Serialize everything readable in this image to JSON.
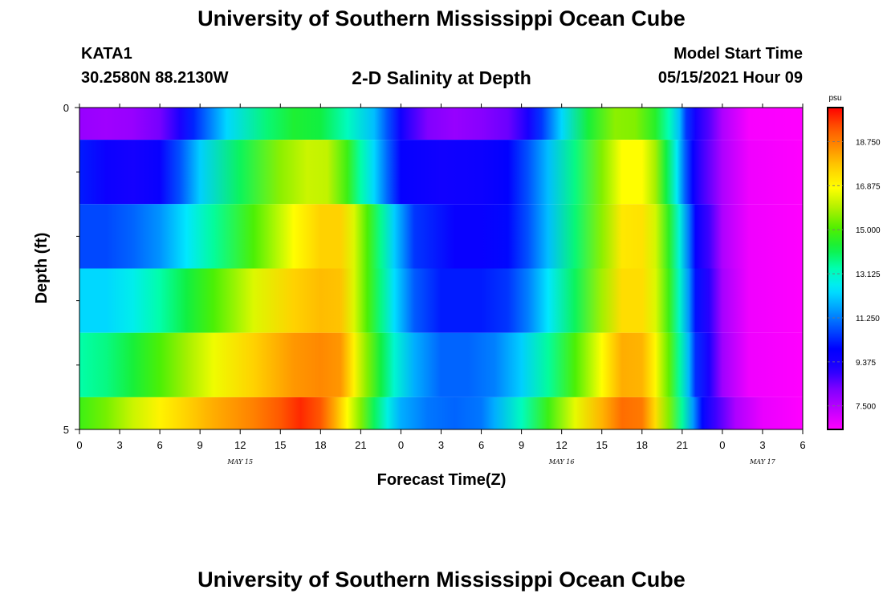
{
  "header": {
    "title": "University of Southern Mississippi Ocean Cube",
    "station_name": "KATA1",
    "station_coords": "30.2580N  88.2130W",
    "model_start_label": "Model Start Time",
    "model_start_value": "05/15/2021 Hour 09"
  },
  "footer": {
    "title": "University of Southern Mississippi Ocean Cube"
  },
  "chart_data": {
    "type": "heatmap",
    "title": "2-D Salinity at Depth",
    "xlabel": "Forecast Time(Z)",
    "ylabel": "Depth (ft)",
    "x_unit": "hours since 2021-05-15 00Z",
    "x_range": [
      0,
      54
    ],
    "x_ticks": [
      0,
      3,
      6,
      9,
      12,
      15,
      18,
      21,
      24,
      27,
      30,
      33,
      36,
      39,
      42,
      45,
      48,
      51,
      54
    ],
    "x_tick_labels": [
      "0",
      "3",
      "6",
      "9",
      "12",
      "15",
      "18",
      "21",
      "0",
      "3",
      "6",
      "9",
      "12",
      "15",
      "18",
      "21",
      "0",
      "3",
      "6"
    ],
    "day_labels": [
      {
        "at_hour": 12,
        "text": "MAY 15"
      },
      {
        "at_hour": 36,
        "text": "MAY 16"
      },
      {
        "at_hour": 51,
        "text": "MAY 17"
      }
    ],
    "y_range": [
      0,
      5
    ],
    "y_tick_labels": [
      {
        "depth": 0,
        "text": "0"
      },
      {
        "depth": 5,
        "text": "5"
      }
    ],
    "y_minor_ticks": [
      1,
      2,
      3,
      4
    ],
    "depth_layers": [
      {
        "top": 0,
        "bottom": 0.5
      },
      {
        "top": 0.5,
        "bottom": 1.5
      },
      {
        "top": 1.5,
        "bottom": 2.5
      },
      {
        "top": 2.5,
        "bottom": 3.5
      },
      {
        "top": 3.5,
        "bottom": 4.5
      },
      {
        "top": 4.5,
        "bottom": 5
      }
    ],
    "layer_series": [
      {
        "hours": [
          0,
          2,
          4,
          6,
          7.5,
          8.5,
          11,
          14,
          16,
          18,
          20,
          22,
          23,
          24,
          26,
          28,
          30,
          32,
          33.5,
          34.5,
          36,
          38,
          40,
          41.5,
          43,
          44,
          44.8,
          45.3,
          46,
          47,
          48,
          50,
          54
        ],
        "values": [
          7.9,
          7.8,
          7.9,
          8.3,
          9.2,
          10.3,
          12.3,
          13.8,
          14.4,
          14.2,
          13.2,
          12,
          10.8,
          9.5,
          8.2,
          7.9,
          8.1,
          8.4,
          9.3,
          10.5,
          12.3,
          14.3,
          15.6,
          15.5,
          14.5,
          13.3,
          12,
          10.5,
          9.4,
          8.6,
          7.6,
          6.6,
          6.5
        ]
      },
      {
        "hours": [
          0,
          2,
          4,
          6,
          7.5,
          9,
          12,
          15,
          17,
          18.5,
          20,
          21,
          22,
          23,
          24,
          27,
          30,
          32,
          33.5,
          35,
          37,
          39,
          40.5,
          42,
          43,
          43.8,
          44.6,
          45.2,
          45.8,
          46.5,
          48,
          50,
          54
        ],
        "values": [
          10.2,
          9.6,
          9.4,
          9.7,
          10.8,
          12.2,
          14,
          15.6,
          16.2,
          16.1,
          14.8,
          13.4,
          12.3,
          11,
          9.8,
          9.5,
          9.6,
          9.9,
          10.8,
          12,
          13.7,
          15.5,
          16.8,
          16.8,
          15.8,
          14.2,
          12.6,
          11,
          9.8,
          8.8,
          7.6,
          6.7,
          6.5
        ]
      },
      {
        "hours": [
          0,
          2,
          4,
          6,
          8,
          10,
          13,
          16,
          18,
          19.5,
          20.5,
          21.5,
          22.5,
          23.5,
          25,
          28,
          30,
          32,
          33.5,
          35,
          37,
          39,
          40.5,
          42,
          43,
          44,
          44.8,
          45.5,
          46,
          47,
          48,
          50,
          54
        ],
        "values": [
          10.7,
          10.7,
          11,
          11.5,
          12.5,
          13.5,
          15,
          16.8,
          17.6,
          17.6,
          16.4,
          15,
          13.6,
          12.2,
          10.5,
          9.7,
          9.7,
          10,
          10.8,
          12,
          13.8,
          15.6,
          17.2,
          17.3,
          16.3,
          14.6,
          12.9,
          11.2,
          9.8,
          8.8,
          7.6,
          6.7,
          6.5
        ]
      },
      {
        "hours": [
          0,
          2,
          4,
          6,
          8,
          10,
          13,
          16,
          18,
          19.5,
          20.5,
          21.5,
          22.5,
          23.5,
          25,
          27,
          30,
          32,
          33.5,
          35,
          37,
          39,
          40.5,
          42,
          43,
          44,
          44.8,
          45.5,
          46,
          47,
          48,
          50,
          54
        ],
        "values": [
          12.3,
          12.3,
          12.7,
          13.4,
          14.2,
          15,
          16.4,
          17.6,
          17.9,
          17.8,
          16.4,
          15,
          13.7,
          12.4,
          10.9,
          10.2,
          10.2,
          10.5,
          11.3,
          12.5,
          14,
          15.8,
          17.4,
          17.4,
          16.4,
          14.8,
          13.1,
          11.5,
          10.1,
          9,
          7.7,
          6.7,
          6.5
        ]
      },
      {
        "hours": [
          0,
          2,
          4,
          6,
          8,
          10,
          13,
          16,
          18,
          19.5,
          20.5,
          21.5,
          22.5,
          23.5,
          25,
          27,
          29,
          31,
          33,
          35,
          37,
          39,
          40.5,
          42,
          43,
          44,
          44.8,
          45.5,
          46,
          47,
          48,
          50,
          54
        ],
        "values": [
          13.4,
          13.7,
          14.3,
          15,
          15.8,
          16.6,
          17.6,
          18.4,
          18.6,
          18.4,
          17,
          15.5,
          14.2,
          13,
          11.8,
          11,
          11,
          11.3,
          12.2,
          13.5,
          15,
          16.8,
          18.1,
          18,
          16.9,
          15.2,
          13.5,
          11.9,
          10.4,
          9.2,
          7.8,
          6.7,
          6.5
        ]
      },
      {
        "hours": [
          0,
          2,
          4,
          6,
          8,
          10,
          13,
          15,
          16.5,
          18,
          19,
          20,
          21,
          22,
          23,
          24,
          26,
          28,
          30,
          31,
          33,
          35,
          37,
          39,
          40.5,
          42,
          43,
          44,
          45,
          45.8,
          46.5,
          47.5,
          49,
          51,
          54
        ],
        "values": [
          14.8,
          15.4,
          16.2,
          17,
          17.6,
          18.1,
          18.7,
          19.3,
          19.8,
          19.3,
          18.2,
          16.8,
          15.5,
          14,
          12.8,
          11.8,
          11.2,
          11,
          11.2,
          11.8,
          13.2,
          14.8,
          16.5,
          18,
          19,
          18.8,
          17.4,
          15.5,
          13.5,
          11.6,
          10,
          8.8,
          7.6,
          6.8,
          6.5
        ]
      }
    ],
    "colorbar": {
      "unit": "psu",
      "range": [
        6.5,
        20.2
      ],
      "tick_values": [
        7.5,
        9.375,
        11.25,
        13.125,
        15,
        16.875,
        18.75
      ],
      "tick_labels": [
        "7.500",
        "9.375",
        "11.250",
        "13.125",
        "15.000",
        "16.875",
        "18.750"
      ]
    },
    "colormap": [
      "#ff00ff",
      "#c000ff",
      "#8000ff",
      "#2000ff",
      "#0000ff",
      "#0050ff",
      "#00a0ff",
      "#00e8ff",
      "#00ffb0",
      "#10f040",
      "#50f000",
      "#b0f000",
      "#ffff00",
      "#ffd000",
      "#ff9000",
      "#ff5500",
      "#ff0000"
    ]
  }
}
